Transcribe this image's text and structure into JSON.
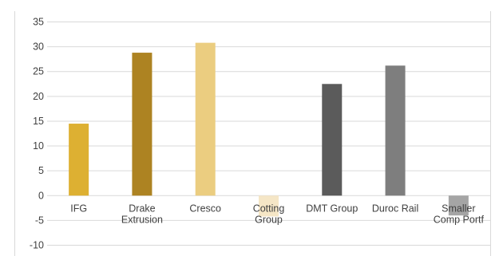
{
  "title_fragment": "",
  "colors": {
    "gridline": "#d9d9d9",
    "axis_text": "#404040",
    "bar_colors": [
      "#ddb032",
      "#ad8322",
      "#ebcd80",
      "#f5e6c6",
      "#5b5b5b",
      "#7e7e7e",
      "#a5a5a5"
    ]
  },
  "chart_data": {
    "type": "bar",
    "title": "",
    "xlabel": "",
    "ylabel": "",
    "categories": [
      [
        "IFG"
      ],
      [
        "Drake",
        "Extrusion"
      ],
      [
        "Cresco"
      ],
      [
        "Cotting",
        "Group"
      ],
      [
        "DMT Group"
      ],
      [
        "Duroc Rail"
      ],
      [
        "Smaller",
        "Comp Portf"
      ]
    ],
    "values": [
      14.5,
      28.8,
      30.8,
      -4.2,
      22.5,
      26.2,
      -4.0
    ],
    "ylim": [
      -10,
      35
    ],
    "yticks": [
      35,
      30,
      25,
      20,
      15,
      10,
      5,
      0,
      -5,
      -10
    ],
    "grid": true,
    "legend": "none"
  }
}
